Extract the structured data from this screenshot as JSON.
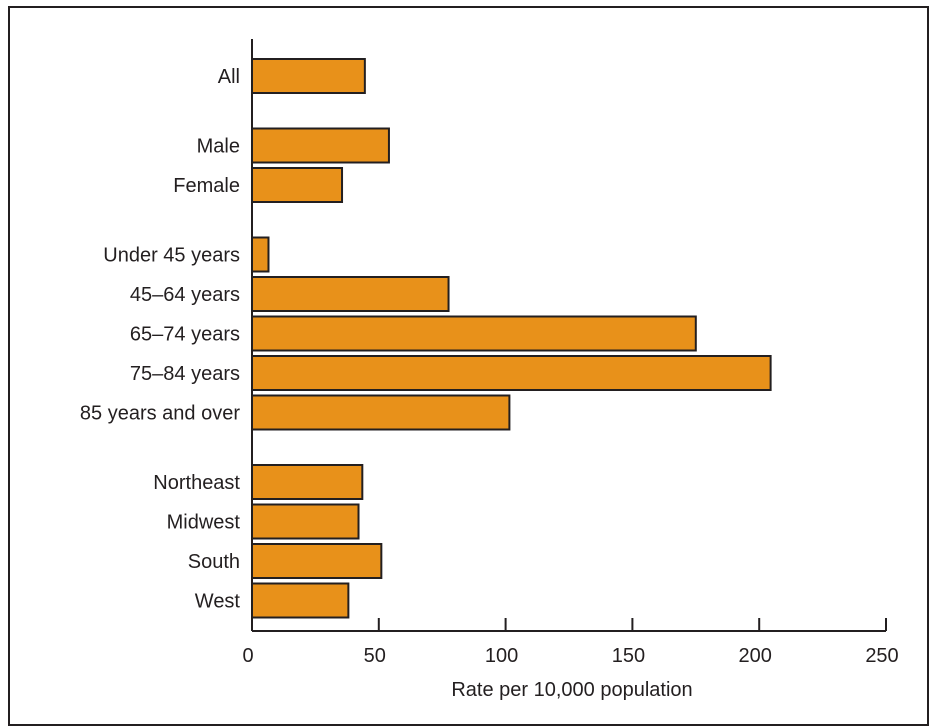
{
  "chart_data": {
    "type": "bar",
    "orientation": "horizontal",
    "title": "",
    "xlabel": "Rate per 10,000 population",
    "ylabel": "",
    "xlim": [
      0,
      250
    ],
    "xticks": [
      0,
      50,
      100,
      150,
      200,
      250
    ],
    "grid": false,
    "bar_color": "#e8911a",
    "groups": [
      {
        "categories": [
          "All"
        ]
      },
      {
        "categories": [
          "Male",
          "Female"
        ]
      },
      {
        "categories": [
          "Under 45 years",
          "45–64 years",
          "65–74 years",
          "75–84 years",
          "85 years and over"
        ]
      },
      {
        "categories": [
          "Northeast",
          "Midwest",
          "South",
          "West"
        ]
      }
    ],
    "categories": [
      "All",
      "Male",
      "Female",
      "Under 45 years",
      "45–64 years",
      "65–74 years",
      "75–84 years",
      "85 years and over",
      "Northeast",
      "Midwest",
      "South",
      "West"
    ],
    "values": [
      44.5,
      54,
      35.5,
      6.5,
      77.5,
      175,
      204.5,
      101.5,
      43.5,
      42,
      51,
      38
    ]
  }
}
